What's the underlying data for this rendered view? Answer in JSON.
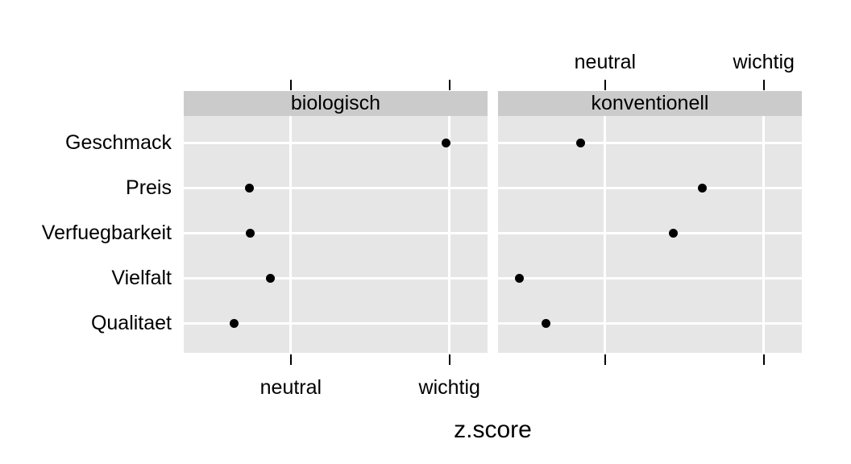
{
  "chart_data": {
    "type": "scatter",
    "subtype": "faceted-dotplot",
    "title": "",
    "xlabel": "z.score",
    "ylabel": "",
    "categories": [
      "Geschmack",
      "Preis",
      "Verfuegbarkeit",
      "Vielfalt",
      "Qualitaet"
    ],
    "facets": [
      {
        "label": "biologisch",
        "values": [
          1.96,
          -0.52,
          -0.51,
          -0.26,
          -0.71
        ]
      },
      {
        "label": "konventionell",
        "values": [
          -0.31,
          1.23,
          0.86,
          -1.08,
          -0.75
        ]
      }
    ],
    "x_ticks": [
      {
        "value": 0,
        "label": "neutral"
      },
      {
        "value": 2,
        "label": "wichtig"
      }
    ],
    "xlim": [
      -1.35,
      2.48
    ],
    "grid": true,
    "legend": "none",
    "axis_label_placement": {
      "biologisch": "bottom",
      "konventionell": "top"
    },
    "colors": {
      "background": "#ffffff",
      "panel_bg": "#e6e6e6",
      "strip_bg": "#cbcbcb",
      "gridline": "#ffffff",
      "point": "#000000",
      "tick": "#000000",
      "text": "#000000"
    }
  }
}
